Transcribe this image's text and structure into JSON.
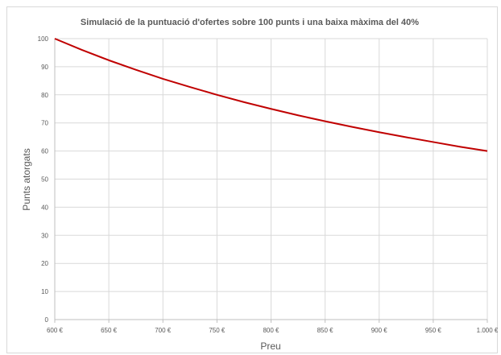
{
  "chart_data": {
    "type": "line",
    "title": "Simulació de la puntuació d'ofertes sobre 100 punts i una baixa màxima del 40%",
    "xlabel": "Preu",
    "ylabel": "Punts atorgats",
    "xlim": [
      600,
      1000
    ],
    "ylim": [
      0,
      100
    ],
    "x_ticks": [
      600,
      650,
      700,
      750,
      800,
      850,
      900,
      950,
      1000
    ],
    "x_tick_labels": [
      "600 €",
      "650 €",
      "700 €",
      "750 €",
      "800 €",
      "850 €",
      "900 €",
      "950 €",
      "1.000 €"
    ],
    "y_ticks": [
      0,
      10,
      20,
      30,
      40,
      50,
      60,
      70,
      80,
      90,
      100
    ],
    "y_tick_labels": [
      "0",
      "10",
      "20",
      "30",
      "40",
      "50",
      "60",
      "70",
      "80",
      "90",
      "100"
    ],
    "grid": true,
    "legend": "none",
    "series": [
      {
        "color": "#c00000",
        "x": [
          600,
          625,
          650,
          675,
          700,
          725,
          750,
          775,
          800,
          825,
          850,
          875,
          900,
          925,
          950,
          975,
          1000
        ],
        "values": [
          100,
          96,
          92.3,
          88.9,
          85.7,
          82.8,
          80,
          77.4,
          75,
          72.7,
          70.6,
          68.6,
          66.7,
          64.9,
          63.2,
          61.5,
          60
        ]
      }
    ]
  },
  "colors": {
    "grid": "#d9d9d9",
    "axis": "#bfbfbf",
    "text": "#595959",
    "line": "#c00000"
  }
}
